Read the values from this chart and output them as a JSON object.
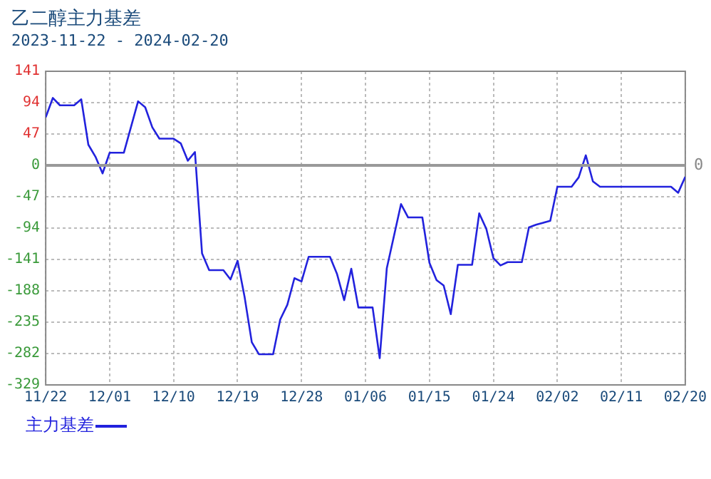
{
  "chart_data": {
    "type": "line",
    "title": "乙二醇主力基差",
    "subtitle": "2023-11-22 - 2024-02-20",
    "x": [
      "2023-11-22",
      "2023-11-23",
      "2023-11-24",
      "2023-11-26",
      "2023-11-27",
      "2023-11-28",
      "2023-11-29",
      "2023-11-30",
      "2023-12-01",
      "2023-12-03",
      "2023-12-05",
      "2023-12-06",
      "2023-12-07",
      "2023-12-08",
      "2023-12-10",
      "2023-12-11",
      "2023-12-12",
      "2023-12-13",
      "2023-12-14",
      "2023-12-15",
      "2023-12-17",
      "2023-12-18",
      "2023-12-19",
      "2023-12-20",
      "2023-12-21",
      "2023-12-22",
      "2023-12-24",
      "2023-12-25",
      "2023-12-26",
      "2023-12-27",
      "2023-12-28",
      "2023-12-29",
      "2024-01-01",
      "2024-01-02",
      "2024-01-03",
      "2024-01-04",
      "2024-01-05",
      "2024-01-07",
      "2024-01-08",
      "2024-01-09",
      "2024-01-11",
      "2024-01-12",
      "2024-01-14",
      "2024-01-15",
      "2024-01-16",
      "2024-01-17",
      "2024-01-18",
      "2024-01-19",
      "2024-01-21",
      "2024-01-22",
      "2024-01-23",
      "2024-01-24",
      "2024-01-25",
      "2024-01-26",
      "2024-01-28",
      "2024-01-29",
      "2024-01-30",
      "2024-02-01",
      "2024-02-02",
      "2024-02-04",
      "2024-02-05",
      "2024-02-06",
      "2024-02-07",
      "2024-02-08",
      "2024-02-18",
      "2024-02-19",
      "2024-02-20"
    ],
    "series": [
      {
        "name": "主力基差",
        "color": "#2222dd",
        "values": [
          72,
          101,
          90,
          90,
          99,
          31,
          13,
          -12,
          19,
          19,
          96,
          87,
          57,
          40,
          40,
          33,
          7,
          20,
          -132,
          -157,
          -157,
          -171,
          -143,
          -198,
          -265,
          -283,
          -283,
          -231,
          -209,
          -169,
          -174,
          -137,
          -137,
          -163,
          -202,
          -155,
          -213,
          -213,
          -289,
          -154,
          -58,
          -78,
          -78,
          -146,
          -172,
          -180,
          -223,
          -149,
          -149,
          -72,
          -95,
          -139,
          -150,
          -145,
          -145,
          -93,
          -89,
          -83,
          -32,
          -32,
          -18,
          15,
          -24,
          -32,
          -32,
          -41,
          -17
        ]
      }
    ],
    "xlim": [
      "2023-11-22",
      "2024-02-20"
    ],
    "xticks": [
      {
        "value": "2023-11-22",
        "label": "11/22"
      },
      {
        "value": "2023-12-01",
        "label": "12/01"
      },
      {
        "value": "2023-12-10",
        "label": "12/10"
      },
      {
        "value": "2023-12-19",
        "label": "12/19"
      },
      {
        "value": "2023-12-28",
        "label": "12/28"
      },
      {
        "value": "2024-01-06",
        "label": "01/06"
      },
      {
        "value": "2024-01-15",
        "label": "01/15"
      },
      {
        "value": "2024-01-24",
        "label": "01/24"
      },
      {
        "value": "2024-02-02",
        "label": "02/02"
      },
      {
        "value": "2024-02-11",
        "label": "02/11"
      },
      {
        "value": "2024-02-20",
        "label": "02/20"
      }
    ],
    "ylim": [
      -329,
      141
    ],
    "yticks": [
      -329,
      -282,
      -235,
      -188,
      -141,
      -94,
      -47,
      0,
      47,
      94,
      141
    ],
    "ref_lines": [
      {
        "axis": "y",
        "value": 0,
        "label": "0",
        "color": "#999999"
      }
    ],
    "grid": true,
    "legend": "bottom left",
    "marker": "none",
    "line_style": "solid"
  }
}
